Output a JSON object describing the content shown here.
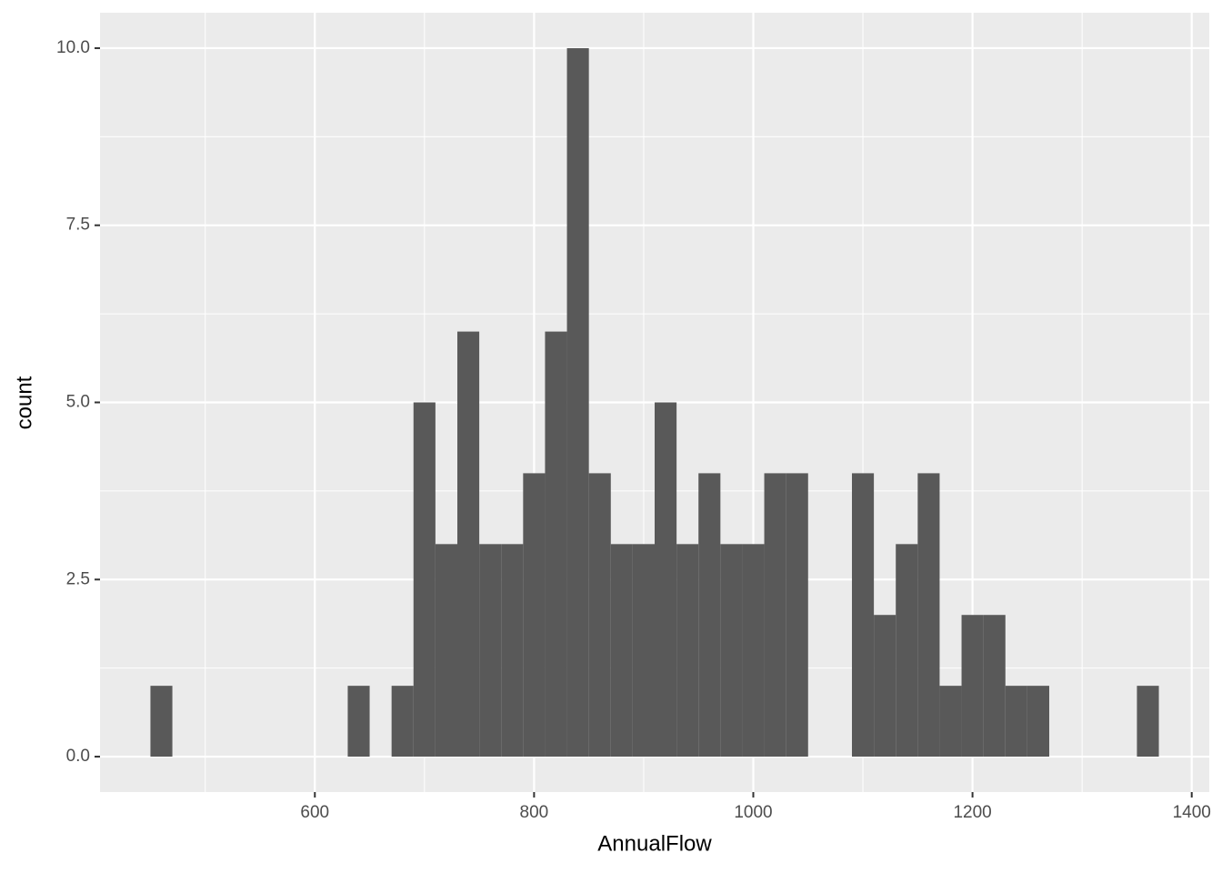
{
  "chart_data": {
    "type": "histogram",
    "x_label": "AnnualFlow",
    "y_label": "count",
    "bins": [
      450,
      470,
      490,
      510,
      530,
      550,
      570,
      590,
      610,
      630,
      650,
      670,
      690,
      710,
      730,
      750,
      770,
      790,
      810,
      830,
      850,
      870,
      890,
      910,
      930,
      950,
      970,
      990,
      1010,
      1030,
      1050,
      1070,
      1090,
      1110,
      1130,
      1150,
      1170,
      1190,
      1210,
      1230,
      1250,
      1270,
      1290,
      1310,
      1330,
      1350,
      1370
    ],
    "values": [
      1,
      0,
      0,
      0,
      0,
      0,
      0,
      0,
      0,
      1,
      0,
      1,
      5,
      3,
      6,
      3,
      3,
      4,
      6,
      10,
      4,
      3,
      3,
      5,
      3,
      4,
      3,
      3,
      4,
      4,
      0,
      0,
      4,
      2,
      3,
      4,
      1,
      2,
      2,
      1,
      1,
      0,
      0,
      0,
      0,
      1
    ],
    "color": "#595959",
    "xlim": [
      404,
      1416
    ],
    "ylim": [
      -0.5,
      10.5
    ],
    "xticks": [
      600,
      800,
      1000,
      1200,
      1400
    ],
    "yticks": [
      {
        "value": 0,
        "label": "0.0"
      },
      2.5,
      {
        "value": 5,
        "label": "5.0"
      },
      7.5,
      {
        "value": 10,
        "label": "10.0"
      }
    ],
    "grid": true
  }
}
